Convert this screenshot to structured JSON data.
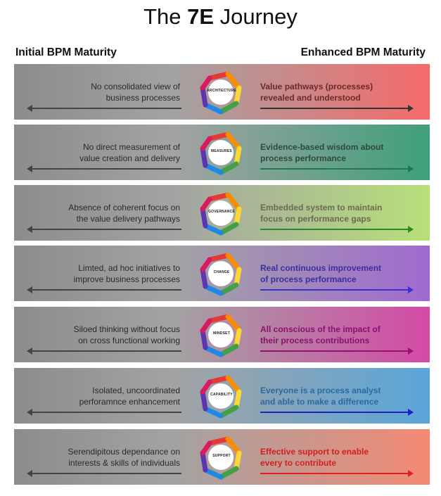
{
  "title_pre": "The ",
  "title_bold": "7E",
  "title_post": " Journey",
  "left_header": "Initial BPM Maturity",
  "right_header": "Enhanced BPM Maturity",
  "rows": [
    {
      "emblem_label": "ARCHITECTURE",
      "left_line1": "No consolidated view of",
      "left_line2": "business processes",
      "right_line1": "Value pathways (processes)",
      "right_line2": "revealed and understood",
      "color": "#f66a6a",
      "text_color": "#6a2a2a",
      "arrow_color": "#333333"
    },
    {
      "emblem_label": "MEASURES",
      "left_line1": "No direct measurement of",
      "left_line2": "value creation and delivery",
      "right_line1": "Evidence-based wisdom about",
      "right_line2": "process performance",
      "color": "#3f9f7b",
      "text_color": "#2e4a40",
      "arrow_color": "#1e7a4e"
    },
    {
      "emblem_label": "GOVERNANCE",
      "left_line1": "Absence of coherent focus on",
      "left_line2": "the value delivery pathways",
      "right_line1": "Embedded system to maintain",
      "right_line2": "focus on performance gaps",
      "color": "#b8e07a",
      "text_color": "#6b6b52",
      "arrow_color": "#2a8a2a"
    },
    {
      "emblem_label": "CHANGE",
      "left_line1": "Limted, ad hoc initiatives to",
      "left_line2": "improve business processes",
      "right_line1": "Real continuous improvement",
      "right_line2": "of process performance",
      "color": "#a06ad0",
      "text_color": "#3a2fa0",
      "arrow_color": "#3a2fd0"
    },
    {
      "emblem_label": "MINDSET",
      "left_line1": "Siloed thinking without focus",
      "left_line2": "on cross functional working",
      "right_line1": "All conscious of the impact of",
      "right_line2": "their process contributions",
      "color": "#d44aa6",
      "text_color": "#8a1070",
      "arrow_color": "#9a1070"
    },
    {
      "emblem_label": "CAPABILITY",
      "left_line1": "Isolated, uncoordinated",
      "left_line2": "perforamnce enhancement",
      "right_line1": "Everyone is a process analyst",
      "right_line2": "and able to make a difference",
      "color": "#5aa6da",
      "text_color": "#2a6aa0",
      "arrow_color": "#2020c0"
    },
    {
      "emblem_label": "SUPPORT",
      "left_line1": "Serendipitous dependance on",
      "left_line2": "interests & skills of individuals",
      "right_line1": "Effective support to enable",
      "right_line2": "every to contribute",
      "color": "#f48a74",
      "text_color": "#d02020",
      "arrow_color": "#e02020"
    }
  ]
}
